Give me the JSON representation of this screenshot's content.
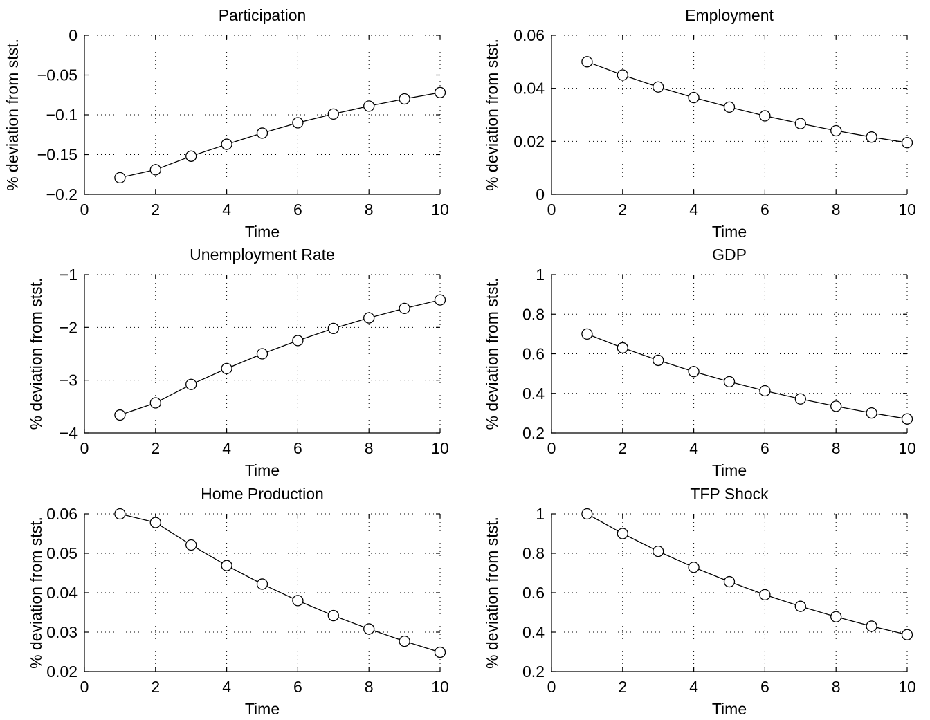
{
  "chart_data": [
    {
      "type": "line",
      "title": "Participation",
      "xlabel": "Time",
      "ylabel": "% deviation from stst.",
      "xlim": [
        0,
        10
      ],
      "ylim": [
        -0.2,
        0
      ],
      "xticks": [
        "0",
        "2",
        "4",
        "6",
        "8",
        "10"
      ],
      "yticks": [
        "0",
        "−0.05",
        "−0.1",
        "−0.15",
        "−0.2"
      ],
      "grid": true,
      "marker": "circle",
      "x": [
        1,
        2,
        3,
        4,
        5,
        6,
        7,
        8,
        9,
        10
      ],
      "y": [
        -0.179,
        -0.169,
        -0.152,
        -0.137,
        -0.123,
        -0.11,
        -0.099,
        -0.089,
        -0.08,
        -0.072
      ]
    },
    {
      "type": "line",
      "title": "Employment",
      "xlabel": "Time",
      "ylabel": "% deviation from stst.",
      "xlim": [
        0,
        10
      ],
      "ylim": [
        0,
        0.06
      ],
      "xticks": [
        "0",
        "2",
        "4",
        "6",
        "8",
        "10"
      ],
      "yticks": [
        "0.06",
        "0.04",
        "0.02",
        "0"
      ],
      "grid": true,
      "marker": "circle",
      "x": [
        1,
        2,
        3,
        4,
        5,
        6,
        7,
        8,
        9,
        10
      ],
      "y": [
        0.05,
        0.045,
        0.0405,
        0.0365,
        0.0329,
        0.0296,
        0.0267,
        0.024,
        0.0216,
        0.0195
      ]
    },
    {
      "type": "line",
      "title": "Unemployment Rate",
      "xlabel": "Time",
      "ylabel": "% deviation from stst.",
      "xlim": [
        0,
        10
      ],
      "ylim": [
        -4,
        -1
      ],
      "xticks": [
        "0",
        "2",
        "4",
        "6",
        "8",
        "10"
      ],
      "yticks": [
        "−1",
        "−2",
        "−3",
        "−4"
      ],
      "grid": true,
      "marker": "circle",
      "x": [
        1,
        2,
        3,
        4,
        5,
        6,
        7,
        8,
        9,
        10
      ],
      "y": [
        -3.66,
        -3.43,
        -3.08,
        -2.78,
        -2.5,
        -2.25,
        -2.02,
        -1.82,
        -1.64,
        -1.48
      ]
    },
    {
      "type": "line",
      "title": "GDP",
      "xlabel": "Time",
      "ylabel": "% deviation from stst.",
      "xlim": [
        0,
        10
      ],
      "ylim": [
        0.2,
        1
      ],
      "xticks": [
        "0",
        "2",
        "4",
        "6",
        "8",
        "10"
      ],
      "yticks": [
        "1",
        "0.8",
        "0.6",
        "0.4",
        "0.2"
      ],
      "grid": true,
      "marker": "circle",
      "x": [
        1,
        2,
        3,
        4,
        5,
        6,
        7,
        8,
        9,
        10
      ],
      "y": [
        0.7,
        0.63,
        0.567,
        0.51,
        0.459,
        0.413,
        0.372,
        0.335,
        0.301,
        0.271
      ]
    },
    {
      "type": "line",
      "title": "Home Production",
      "xlabel": "Time",
      "ylabel": "% deviation from stst.",
      "xlim": [
        0,
        10
      ],
      "ylim": [
        0.02,
        0.06
      ],
      "xticks": [
        "0",
        "2",
        "4",
        "6",
        "8",
        "10"
      ],
      "yticks": [
        "0.06",
        "0.05",
        "0.04",
        "0.03",
        "0.02"
      ],
      "grid": true,
      "marker": "circle",
      "x": [
        1,
        2,
        3,
        4,
        5,
        6,
        7,
        8,
        9,
        10
      ],
      "y": [
        0.06,
        0.0578,
        0.0521,
        0.0469,
        0.0422,
        0.038,
        0.0342,
        0.0308,
        0.0277,
        0.0249
      ]
    },
    {
      "type": "line",
      "title": "TFP Shock",
      "xlabel": "Time",
      "ylabel": "% deviation from stst.",
      "xlim": [
        0,
        10
      ],
      "ylim": [
        0.2,
        1
      ],
      "xticks": [
        "0",
        "2",
        "4",
        "6",
        "8",
        "10"
      ],
      "yticks": [
        "1",
        "0.8",
        "0.6",
        "0.4",
        "0.2"
      ],
      "grid": true,
      "marker": "circle",
      "x": [
        1,
        2,
        3,
        4,
        5,
        6,
        7,
        8,
        9,
        10
      ],
      "y": [
        1.0,
        0.9,
        0.81,
        0.729,
        0.656,
        0.59,
        0.531,
        0.478,
        0.43,
        0.387
      ]
    }
  ]
}
